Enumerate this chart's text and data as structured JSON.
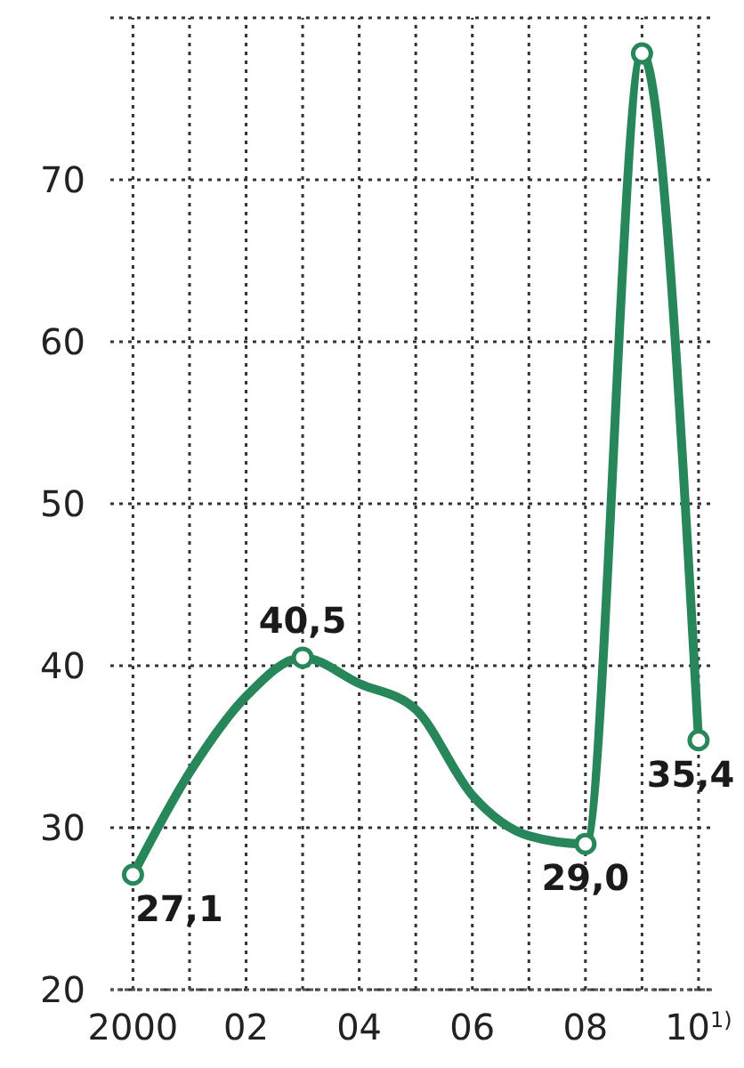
{
  "chart_data": {
    "type": "line",
    "x": [
      2000,
      2001,
      2002,
      2003,
      2004,
      2005,
      2006,
      2007,
      2008,
      2009,
      2010
    ],
    "series": [
      {
        "color": "#27865a",
        "values": [
          27.1,
          33.4,
          38.1,
          40.5,
          38.9,
          37.3,
          32.0,
          29.5,
          29.0,
          77.8,
          35.4
        ],
        "value_labels": [
          "27,1",
          null,
          null,
          "40,5",
          null,
          null,
          null,
          null,
          "29,0",
          null,
          "35,4"
        ]
      },
      {
        "type": "scatter",
        "color": "#27865a",
        "marker": "circle",
        "x": [
          2000,
          2003,
          2008,
          2009,
          2010
        ],
        "values": [
          27.1,
          40.5,
          29.0,
          77.8,
          35.4
        ]
      }
    ],
    "xlim": [
      1999.6,
      2010.3
    ],
    "ylim": [
      20,
      80
    ],
    "xticks": [
      2000,
      {
        "value": 2001,
        "label": null
      },
      {
        "value": 2002,
        "label": "02"
      },
      {
        "value": 2003,
        "label": null
      },
      {
        "value": 2004,
        "label": "04"
      },
      {
        "value": 2005,
        "label": null
      },
      {
        "value": 2006,
        "label": "06"
      },
      {
        "value": 2007,
        "label": null
      },
      {
        "value": 2008,
        "label": "08"
      },
      {
        "value": 2009,
        "label": null
      },
      {
        "value": 2010,
        "label": "10$^{1)}$"
      }
    ],
    "yticks": [
      20,
      30,
      40,
      50,
      60,
      70,
      {
        "value": 80,
        "label": null
      }
    ],
    "grid": true
  }
}
